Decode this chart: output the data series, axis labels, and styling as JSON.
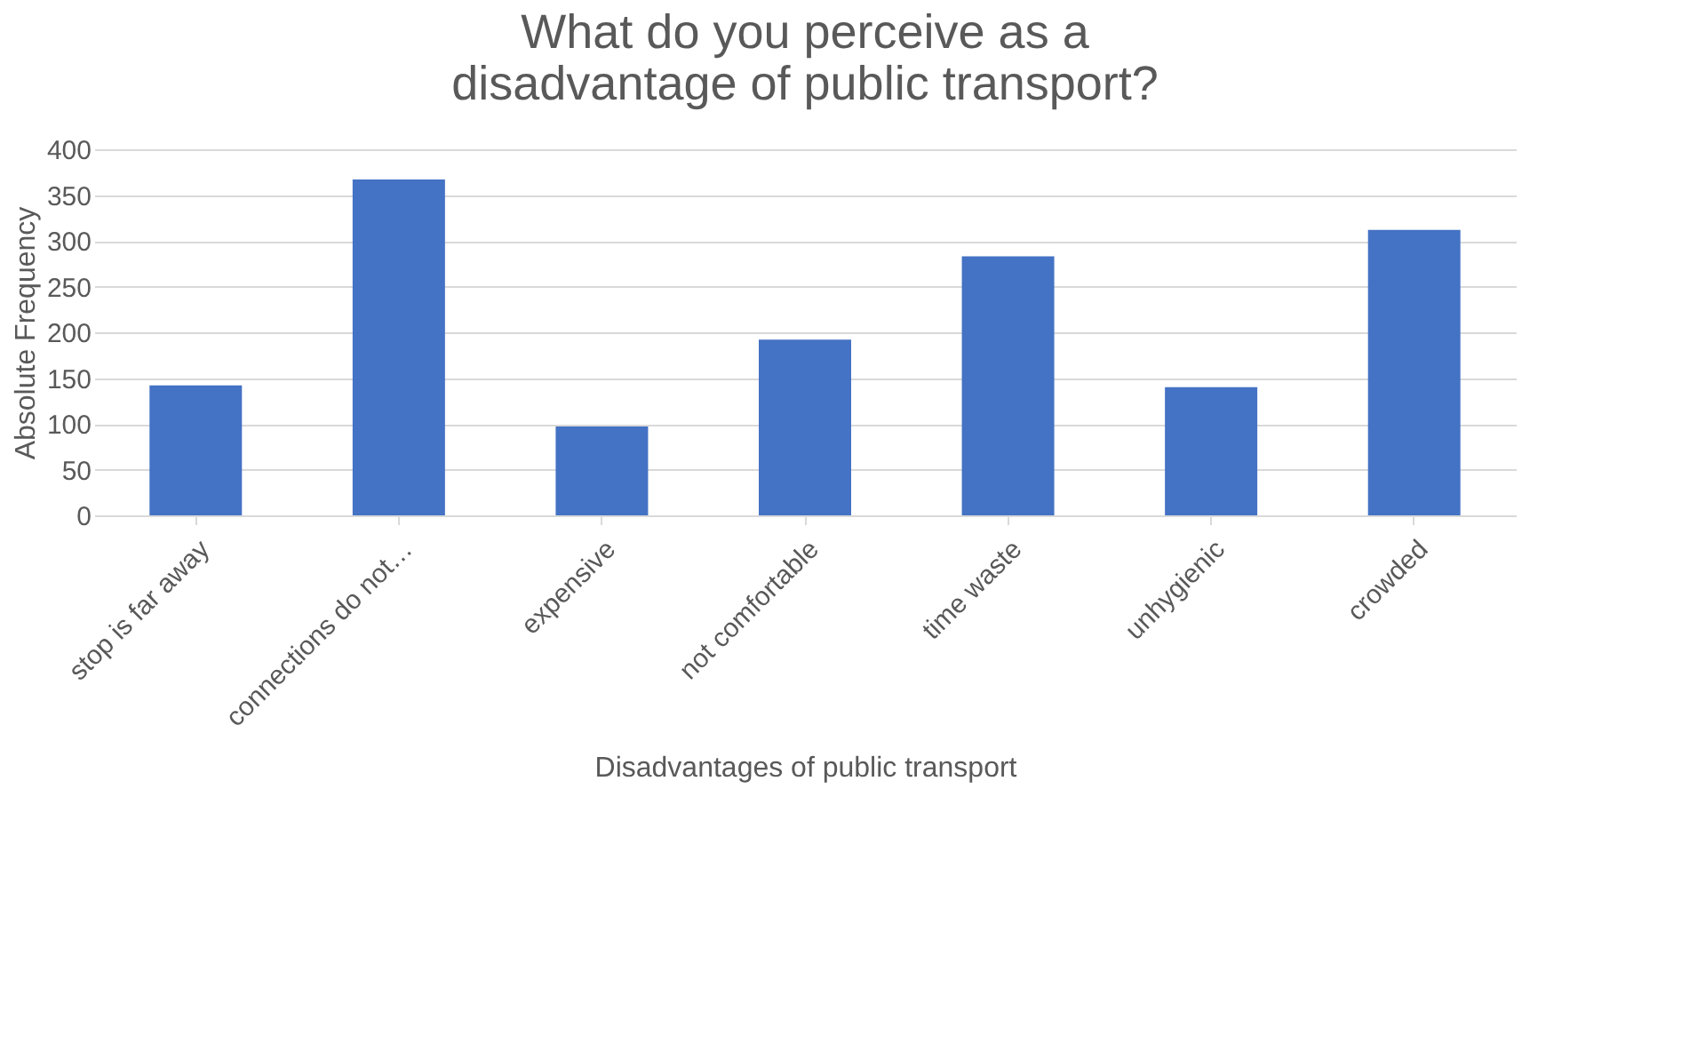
{
  "chart_data": {
    "type": "bar",
    "title": "What do you perceive as a disadvantage of public transport?",
    "xlabel": "Disadvantages of public transport",
    "ylabel": "Absolute Frequency",
    "categories": [
      "stop is far away",
      "connections do not…",
      "expensive",
      "not comfortable",
      "time waste",
      "unhygienic",
      "crowded"
    ],
    "values": [
      142,
      367,
      97,
      192,
      283,
      140,
      312
    ],
    "color": "#4472c4",
    "ylim": [
      0,
      400
    ],
    "yticks": [
      0,
      50,
      100,
      150,
      200,
      250,
      300,
      350,
      400
    ],
    "grid": "y"
  }
}
